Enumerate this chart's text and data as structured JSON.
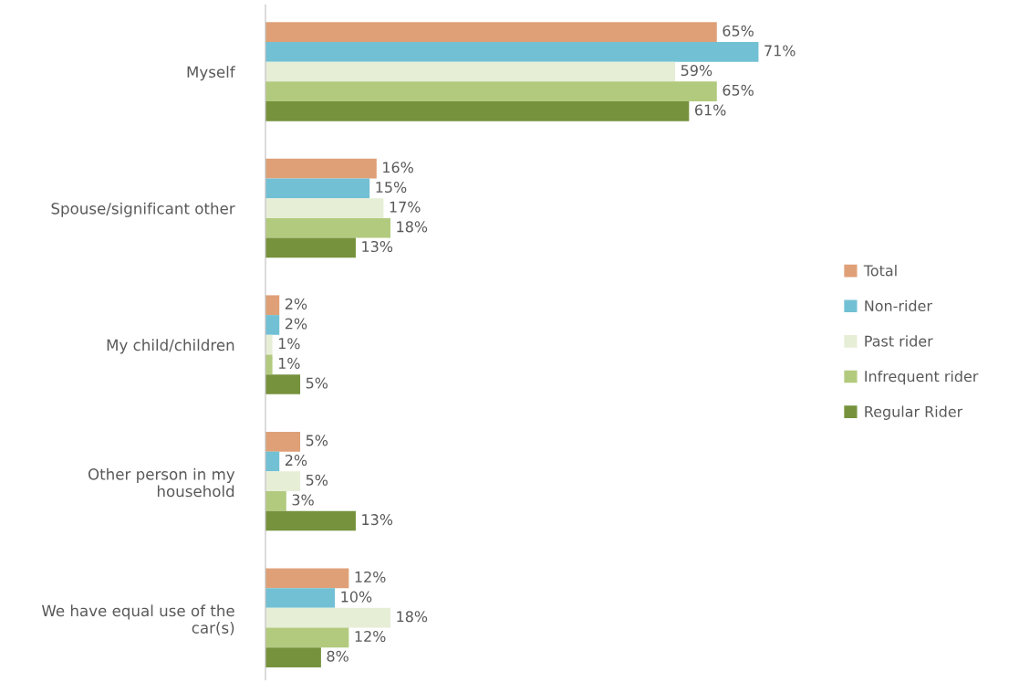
{
  "chart_data": {
    "type": "bar",
    "orientation": "horizontal",
    "categories": [
      "Myself",
      "Spouse/significant other",
      "My child/children",
      "Other person in my\nhousehold",
      "We have equal use of the\ncar(s)"
    ],
    "series": [
      {
        "name": "Total",
        "color": "#dfa077",
        "values": [
          65,
          16,
          2,
          5,
          12
        ],
        "value_labels": [
          "65%",
          "16%",
          "2%",
          "5%",
          "12%"
        ]
      },
      {
        "name": "Non-rider",
        "color": "#72c0d4",
        "values": [
          71,
          15,
          2,
          2,
          10
        ],
        "value_labels": [
          "71%",
          "15%",
          "2%",
          "2%",
          "10%"
        ]
      },
      {
        "name": "Past rider",
        "color": "#e6eed6",
        "values": [
          59,
          17,
          1,
          5,
          18
        ],
        "value_labels": [
          "59%",
          "17%",
          "1%",
          "5%",
          "18%"
        ]
      },
      {
        "name": "Infrequent rider",
        "color": "#b2ca7d",
        "values": [
          65,
          18,
          1,
          3,
          12
        ],
        "value_labels": [
          "65%",
          "18%",
          "1%",
          "3%",
          "12%"
        ]
      },
      {
        "name": "Regular Rider",
        "color": "#76923c",
        "values": [
          61,
          13,
          5,
          13,
          8
        ],
        "value_labels": [
          "61%",
          "13%",
          "5%",
          "13%",
          "8%"
        ]
      }
    ],
    "legend": "right",
    "grid": false
  }
}
